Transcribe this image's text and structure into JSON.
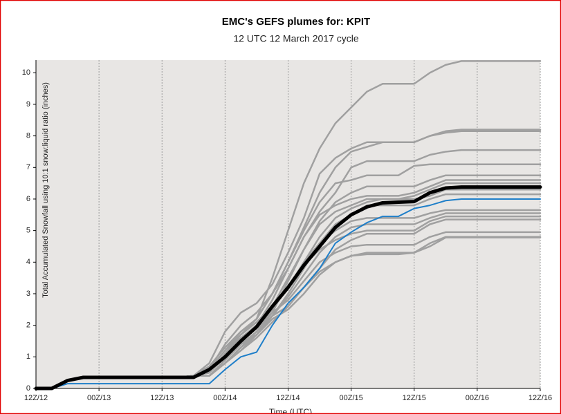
{
  "chart_data": {
    "type": "line",
    "title": "EMC's GEFS plumes for: KPIT",
    "subtitle": "12 UTC 12 March 2017 cycle",
    "x_label": "Time (UTC)",
    "y_label": "Total Accumulated Snowfall using 10:1 snow:liquid ratio (inches)",
    "x": [
      0,
      3,
      6,
      9,
      12,
      15,
      18,
      21,
      24,
      27,
      30,
      33,
      36,
      39,
      42,
      45,
      48,
      51,
      54,
      57,
      60,
      63,
      66,
      69,
      72,
      75,
      78,
      81,
      84,
      87,
      90,
      93,
      96
    ],
    "xlim": [
      0,
      96
    ],
    "xticks": [
      {
        "value": 0,
        "label": "12Z/12"
      },
      {
        "value": 12,
        "label": "00Z/13"
      },
      {
        "value": 24,
        "label": "12Z/13"
      },
      {
        "value": 36,
        "label": "00Z/14"
      },
      {
        "value": 48,
        "label": "12Z/14"
      },
      {
        "value": 60,
        "label": "00Z/15"
      },
      {
        "value": 72,
        "label": "12Z/15"
      },
      {
        "value": 84,
        "label": "00Z/16"
      },
      {
        "value": 96,
        "label": "12Z/16"
      }
    ],
    "ylim": [
      0,
      10.4
    ],
    "yticks": [
      0,
      1,
      2,
      3,
      4,
      5,
      6,
      7,
      8,
      9,
      10
    ],
    "grid": true,
    "series": [
      {
        "color": "#a0a0a0",
        "values": [
          0,
          0,
          0.25,
          0.35,
          0.35,
          0.35,
          0.35,
          0.35,
          0.35,
          0.35,
          0.4,
          0.7,
          1.3,
          1.8,
          2.2,
          3.5,
          5.0,
          6.5,
          7.6,
          8.4,
          8.9,
          9.4,
          9.65,
          9.65,
          9.65,
          10.0,
          10.25,
          10.37,
          10.37,
          10.37,
          10.37,
          10.37,
          10.37
        ]
      },
      {
        "color": "#a0a0a0",
        "values": [
          0,
          0,
          0.25,
          0.35,
          0.35,
          0.35,
          0.35,
          0.35,
          0.35,
          0.35,
          0.4,
          0.8,
          1.8,
          2.4,
          2.7,
          3.3,
          4.3,
          5.4,
          6.8,
          7.3,
          7.6,
          7.8,
          7.8,
          7.8,
          7.8,
          8.0,
          8.15,
          8.2,
          8.2,
          8.2,
          8.2,
          8.2,
          8.2
        ]
      },
      {
        "color": "#a0a0a0",
        "values": [
          0,
          0,
          0.25,
          0.35,
          0.35,
          0.35,
          0.35,
          0.35,
          0.35,
          0.35,
          0.4,
          0.6,
          1.2,
          1.7,
          2.2,
          3.0,
          4.0,
          5.1,
          6.2,
          7.0,
          7.5,
          7.65,
          7.8,
          7.8,
          7.8,
          8.0,
          8.1,
          8.15,
          8.15,
          8.15,
          8.15,
          8.15,
          8.15
        ]
      },
      {
        "color": "#a0a0a0",
        "values": [
          0,
          0,
          0.25,
          0.35,
          0.35,
          0.35,
          0.35,
          0.35,
          0.35,
          0.35,
          0.4,
          0.5,
          1.1,
          1.6,
          2.0,
          2.8,
          3.8,
          4.8,
          5.6,
          6.2,
          7.0,
          7.2,
          7.2,
          7.2,
          7.2,
          7.4,
          7.5,
          7.55,
          7.55,
          7.55,
          7.55,
          7.55,
          7.55
        ]
      },
      {
        "color": "#a0a0a0",
        "values": [
          0,
          0,
          0.25,
          0.35,
          0.35,
          0.35,
          0.35,
          0.35,
          0.35,
          0.35,
          0.4,
          0.6,
          1.2,
          1.8,
          2.2,
          3.0,
          4.0,
          5.0,
          5.9,
          6.5,
          6.6,
          6.75,
          6.75,
          6.75,
          7.05,
          7.1,
          7.1,
          7.1,
          7.1,
          7.1,
          7.1,
          7.1,
          7.1
        ]
      },
      {
        "color": "#a0a0a0",
        "values": [
          0,
          0,
          0.25,
          0.35,
          0.35,
          0.35,
          0.35,
          0.35,
          0.35,
          0.35,
          0.4,
          0.5,
          1.0,
          1.5,
          1.9,
          2.6,
          3.5,
          4.4,
          5.3,
          5.9,
          6.2,
          6.4,
          6.4,
          6.4,
          6.4,
          6.6,
          6.75,
          6.75,
          6.75,
          6.75,
          6.75,
          6.75,
          6.75
        ]
      },
      {
        "color": "#a0a0a0",
        "values": [
          0,
          0,
          0.25,
          0.35,
          0.35,
          0.35,
          0.35,
          0.35,
          0.35,
          0.35,
          0.4,
          0.6,
          1.4,
          2.0,
          2.4,
          3.0,
          3.8,
          4.8,
          5.5,
          5.8,
          6.0,
          6.1,
          6.1,
          6.1,
          6.2,
          6.4,
          6.6,
          6.6,
          6.6,
          6.6,
          6.6,
          6.6,
          6.6
        ]
      },
      {
        "color": "#a0a0a0",
        "values": [
          0,
          0,
          0.25,
          0.35,
          0.35,
          0.35,
          0.35,
          0.35,
          0.35,
          0.35,
          0.4,
          0.4,
          0.9,
          1.4,
          1.8,
          2.4,
          3.4,
          4.4,
          5.2,
          5.6,
          5.8,
          6.0,
          6.0,
          6.0,
          6.1,
          6.3,
          6.5,
          6.5,
          6.5,
          6.5,
          6.5,
          6.5,
          6.5
        ]
      },
      {
        "color": "#a0a0a0",
        "values": [
          0,
          0,
          0.25,
          0.35,
          0.35,
          0.35,
          0.35,
          0.35,
          0.35,
          0.35,
          0.4,
          0.5,
          1.1,
          1.6,
          2.0,
          2.6,
          3.2,
          4.0,
          4.8,
          5.4,
          5.7,
          5.9,
          6.0,
          6.0,
          6.0,
          6.1,
          6.3,
          6.3,
          6.3,
          6.3,
          6.3,
          6.3,
          6.3
        ]
      },
      {
        "color": "#a0a0a0",
        "values": [
          0,
          0,
          0.25,
          0.35,
          0.35,
          0.35,
          0.35,
          0.35,
          0.35,
          0.35,
          0.4,
          0.4,
          0.8,
          1.3,
          1.7,
          2.3,
          3.0,
          3.8,
          4.6,
          5.2,
          5.5,
          5.8,
          5.8,
          5.8,
          5.8,
          6.0,
          6.15,
          6.15,
          6.15,
          6.15,
          6.15,
          6.15,
          6.15
        ]
      },
      {
        "color": "#a0a0a0",
        "values": [
          0,
          0,
          0.25,
          0.35,
          0.35,
          0.35,
          0.35,
          0.35,
          0.35,
          0.35,
          0.4,
          0.5,
          1.0,
          1.5,
          1.9,
          2.5,
          3.2,
          4.0,
          4.6,
          5.0,
          5.3,
          5.4,
          5.4,
          5.4,
          5.4,
          5.55,
          5.65,
          5.65,
          5.65,
          5.65,
          5.65,
          5.65,
          5.65
        ]
      },
      {
        "color": "#a0a0a0",
        "values": [
          0,
          0,
          0.25,
          0.35,
          0.35,
          0.35,
          0.35,
          0.35,
          0.35,
          0.35,
          0.4,
          0.4,
          0.8,
          1.2,
          1.7,
          2.3,
          2.9,
          3.6,
          4.3,
          4.8,
          5.1,
          5.2,
          5.2,
          5.2,
          5.2,
          5.4,
          5.55,
          5.55,
          5.55,
          5.55,
          5.55,
          5.55,
          5.55
        ]
      },
      {
        "color": "#a0a0a0",
        "values": [
          0,
          0,
          0.25,
          0.35,
          0.35,
          0.35,
          0.35,
          0.35,
          0.35,
          0.35,
          0.4,
          0.5,
          1.1,
          1.7,
          2.1,
          2.6,
          3.2,
          3.9,
          4.4,
          4.7,
          4.9,
          5.0,
          5.0,
          5.0,
          5.0,
          5.3,
          5.45,
          5.45,
          5.45,
          5.45,
          5.45,
          5.45,
          5.45
        ]
      },
      {
        "color": "#a0a0a0",
        "values": [
          0,
          0,
          0.25,
          0.35,
          0.35,
          0.35,
          0.35,
          0.35,
          0.35,
          0.35,
          0.4,
          0.4,
          0.8,
          1.3,
          1.8,
          2.3,
          2.6,
          3.2,
          3.8,
          4.4,
          4.7,
          4.9,
          4.9,
          4.9,
          4.9,
          5.2,
          5.35,
          5.35,
          5.35,
          5.35,
          5.35,
          5.35,
          5.35
        ]
      },
      {
        "color": "#a0a0a0",
        "values": [
          0,
          0,
          0.25,
          0.35,
          0.35,
          0.35,
          0.35,
          0.35,
          0.35,
          0.35,
          0.4,
          0.5,
          1.0,
          1.5,
          1.9,
          2.4,
          2.8,
          3.4,
          4.0,
          4.3,
          4.5,
          4.55,
          4.55,
          4.55,
          4.55,
          4.8,
          4.95,
          4.95,
          4.95,
          4.95,
          4.95,
          4.95,
          4.95
        ]
      },
      {
        "color": "#a0a0a0",
        "values": [
          0,
          0,
          0.25,
          0.35,
          0.35,
          0.35,
          0.35,
          0.35,
          0.35,
          0.35,
          0.4,
          0.4,
          0.9,
          1.4,
          1.7,
          2.2,
          2.5,
          3.0,
          3.6,
          4.0,
          4.2,
          4.3,
          4.3,
          4.3,
          4.3,
          4.6,
          4.8,
          4.8,
          4.8,
          4.8,
          4.8,
          4.8,
          4.8
        ]
      },
      {
        "color": "#a0a0a0",
        "values": [
          0,
          0,
          0.25,
          0.35,
          0.35,
          0.35,
          0.35,
          0.35,
          0.35,
          0.35,
          0.4,
          0.4,
          0.8,
          1.2,
          1.6,
          2.1,
          2.6,
          3.2,
          3.7,
          4.0,
          4.2,
          4.25,
          4.25,
          4.25,
          4.3,
          4.5,
          4.78,
          4.78,
          4.78,
          4.78,
          4.78,
          4.78,
          4.78
        ]
      },
      {
        "color": "#1f7fc9",
        "values": [
          0,
          0,
          0.15,
          0.15,
          0.15,
          0.15,
          0.15,
          0.15,
          0.15,
          0.15,
          0.15,
          0.15,
          0.6,
          1.0,
          1.15,
          2.0,
          2.7,
          3.2,
          3.8,
          4.6,
          4.95,
          5.25,
          5.45,
          5.45,
          5.7,
          5.8,
          5.95,
          6.0,
          6.0,
          6.0,
          6.0,
          6.0,
          6.0
        ]
      },
      {
        "color": "#000000",
        "values": [
          0,
          0,
          0.25,
          0.35,
          0.35,
          0.35,
          0.35,
          0.35,
          0.35,
          0.35,
          0.35,
          0.6,
          1.0,
          1.5,
          1.95,
          2.6,
          3.2,
          3.9,
          4.5,
          5.1,
          5.5,
          5.75,
          5.88,
          5.9,
          5.92,
          6.2,
          6.35,
          6.38,
          6.38,
          6.38,
          6.38,
          6.38,
          6.38
        ]
      }
    ]
  }
}
